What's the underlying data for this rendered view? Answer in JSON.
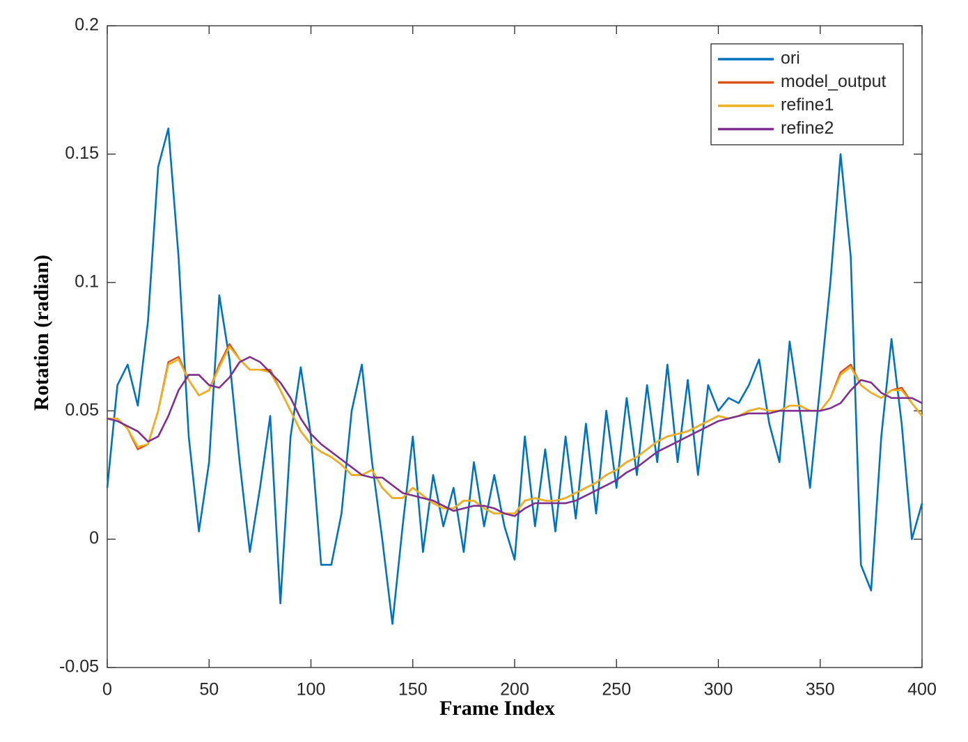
{
  "chart_data": {
    "type": "line",
    "x_label": "Frame Index",
    "y_label": "Rotation (radian)",
    "x": [
      0,
      5,
      10,
      15,
      20,
      25,
      30,
      35,
      40,
      45,
      50,
      55,
      60,
      65,
      70,
      75,
      80,
      85,
      90,
      95,
      100,
      105,
      110,
      115,
      120,
      125,
      130,
      135,
      140,
      145,
      150,
      155,
      160,
      165,
      170,
      175,
      180,
      185,
      190,
      195,
      200,
      205,
      210,
      215,
      220,
      225,
      230,
      235,
      240,
      245,
      250,
      255,
      260,
      265,
      270,
      275,
      280,
      285,
      290,
      295,
      300,
      305,
      310,
      315,
      320,
      325,
      330,
      335,
      340,
      345,
      350,
      355,
      360,
      365,
      370,
      375,
      380,
      385,
      390,
      395,
      400
    ],
    "series": [
      {
        "name": "ori",
        "color": "#0072BD",
        "values": [
          0.02,
          0.06,
          0.068,
          0.052,
          0.085,
          0.145,
          0.16,
          0.11,
          0.04,
          0.003,
          0.03,
          0.095,
          0.07,
          0.03,
          -0.005,
          0.02,
          0.048,
          -0.025,
          0.04,
          0.067,
          0.04,
          -0.01,
          -0.01,
          0.01,
          0.05,
          0.068,
          0.03,
          0.0,
          -0.033,
          0.005,
          0.04,
          -0.005,
          0.025,
          0.005,
          0.02,
          -0.005,
          0.03,
          0.005,
          0.025,
          0.005,
          -0.008,
          0.04,
          0.005,
          0.035,
          0.003,
          0.04,
          0.008,
          0.045,
          0.01,
          0.05,
          0.02,
          0.055,
          0.025,
          0.06,
          0.03,
          0.068,
          0.03,
          0.062,
          0.025,
          0.06,
          0.05,
          0.055,
          0.053,
          0.06,
          0.07,
          0.045,
          0.03,
          0.077,
          0.05,
          0.02,
          0.06,
          0.1,
          0.15,
          0.11,
          -0.01,
          -0.02,
          0.04,
          0.078,
          0.045,
          0.0,
          0.014
        ]
      },
      {
        "name": "model_output",
        "color": "#D95319",
        "values": [
          0.047,
          0.047,
          0.043,
          0.035,
          0.037,
          0.05,
          0.069,
          0.071,
          0.062,
          0.056,
          0.058,
          0.068,
          0.076,
          0.07,
          0.066,
          0.066,
          0.066,
          0.058,
          0.05,
          0.042,
          0.037,
          0.034,
          0.032,
          0.029,
          0.025,
          0.025,
          0.027,
          0.02,
          0.016,
          0.016,
          0.02,
          0.017,
          0.014,
          0.012,
          0.012,
          0.015,
          0.015,
          0.012,
          0.01,
          0.01,
          0.01,
          0.015,
          0.016,
          0.015,
          0.015,
          0.016,
          0.018,
          0.02,
          0.022,
          0.025,
          0.027,
          0.03,
          0.032,
          0.035,
          0.038,
          0.04,
          0.041,
          0.042,
          0.044,
          0.046,
          0.048,
          0.047,
          0.048,
          0.05,
          0.051,
          0.05,
          0.05,
          0.052,
          0.052,
          0.05,
          0.05,
          0.055,
          0.065,
          0.068,
          0.06,
          0.057,
          0.055,
          0.058,
          0.059,
          0.053,
          0.048
        ]
      },
      {
        "name": "refine1",
        "color": "#EDB120",
        "values": [
          0.047,
          0.047,
          0.043,
          0.036,
          0.037,
          0.05,
          0.068,
          0.07,
          0.062,
          0.056,
          0.058,
          0.067,
          0.075,
          0.07,
          0.066,
          0.066,
          0.065,
          0.058,
          0.05,
          0.042,
          0.037,
          0.034,
          0.032,
          0.029,
          0.025,
          0.025,
          0.027,
          0.02,
          0.016,
          0.016,
          0.02,
          0.017,
          0.014,
          0.012,
          0.012,
          0.015,
          0.015,
          0.012,
          0.01,
          0.01,
          0.01,
          0.015,
          0.016,
          0.015,
          0.015,
          0.016,
          0.018,
          0.02,
          0.022,
          0.025,
          0.027,
          0.03,
          0.032,
          0.035,
          0.038,
          0.04,
          0.041,
          0.042,
          0.044,
          0.046,
          0.048,
          0.047,
          0.048,
          0.05,
          0.051,
          0.05,
          0.05,
          0.052,
          0.052,
          0.05,
          0.05,
          0.055,
          0.064,
          0.067,
          0.06,
          0.057,
          0.055,
          0.058,
          0.058,
          0.053,
          0.048
        ]
      },
      {
        "name": "refine2",
        "color": "#7E2F8E",
        "values": [
          0.047,
          0.046,
          0.044,
          0.042,
          0.038,
          0.04,
          0.048,
          0.058,
          0.064,
          0.064,
          0.06,
          0.059,
          0.063,
          0.069,
          0.071,
          0.069,
          0.065,
          0.061,
          0.055,
          0.047,
          0.041,
          0.037,
          0.034,
          0.031,
          0.028,
          0.025,
          0.024,
          0.024,
          0.021,
          0.018,
          0.017,
          0.016,
          0.015,
          0.013,
          0.011,
          0.012,
          0.013,
          0.013,
          0.012,
          0.01,
          0.009,
          0.012,
          0.014,
          0.014,
          0.014,
          0.014,
          0.015,
          0.017,
          0.019,
          0.021,
          0.023,
          0.026,
          0.028,
          0.031,
          0.034,
          0.036,
          0.038,
          0.04,
          0.042,
          0.044,
          0.046,
          0.047,
          0.048,
          0.049,
          0.049,
          0.049,
          0.05,
          0.05,
          0.05,
          0.05,
          0.05,
          0.051,
          0.053,
          0.058,
          0.062,
          0.061,
          0.057,
          0.055,
          0.055,
          0.055,
          0.053
        ]
      }
    ],
    "xlim": [
      0,
      400
    ],
    "xticks": [
      0,
      50,
      100,
      150,
      200,
      250,
      300,
      350,
      400
    ],
    "ylim": [
      -0.05,
      0.2
    ],
    "yticks": [
      -0.05,
      0,
      0.05,
      0.1,
      0.15,
      0.2
    ],
    "legend": "northeast"
  }
}
